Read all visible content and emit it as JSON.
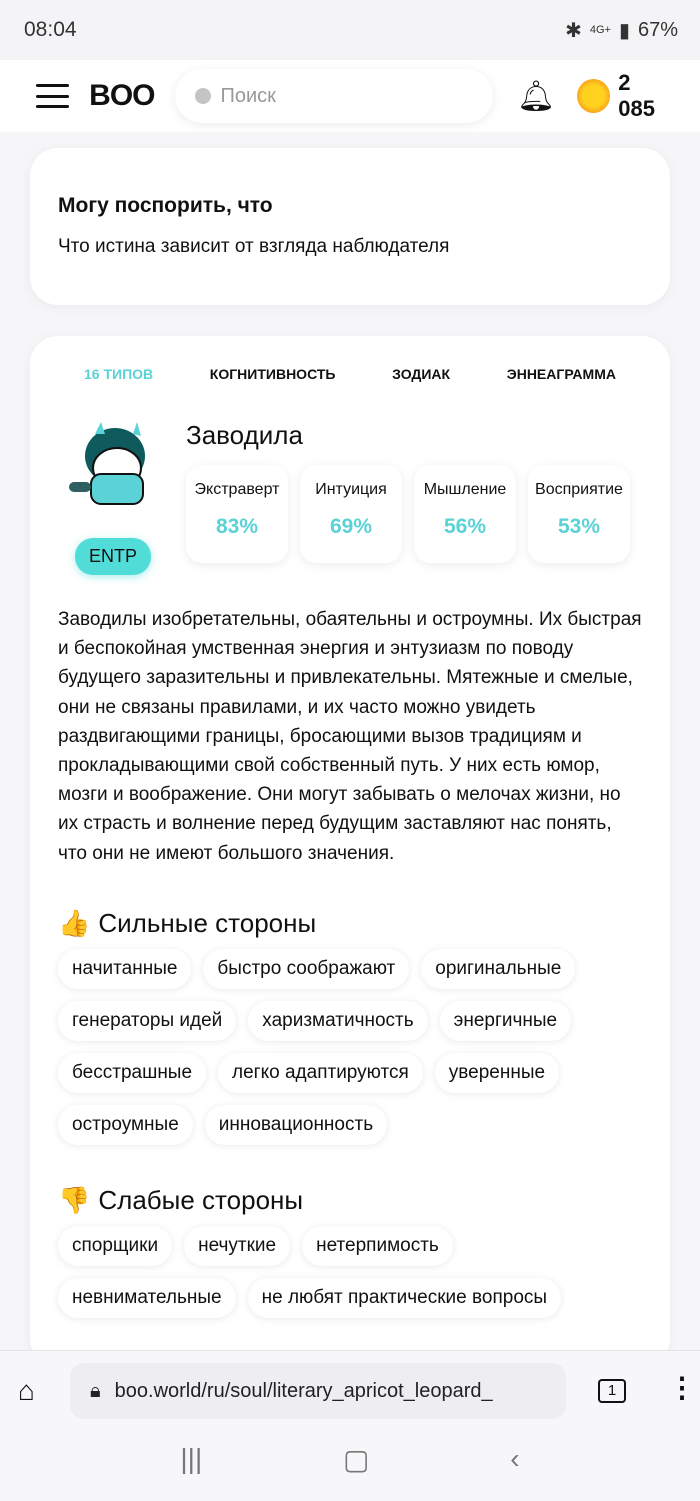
{
  "status": {
    "time": "08:04",
    "battery": "67%",
    "network": "4G+"
  },
  "header": {
    "logo": "BOO",
    "search_placeholder": "Поиск",
    "coins": "2 085"
  },
  "bet_card": {
    "title": "Могу поспорить, что",
    "text": "Что истина зависит от взгляда наблюдателя"
  },
  "tabs": [
    "16 ТИПОВ",
    "КОГНИТИВНОСТЬ",
    "ЗОДИАК",
    "ЭННЕАГРАММА"
  ],
  "profile": {
    "type_name": "Заводила",
    "type_code": "ENTP",
    "stats": [
      {
        "label": "Экстраверт",
        "value": "83%"
      },
      {
        "label": "Интуиция",
        "value": "69%"
      },
      {
        "label": "Мышление",
        "value": "56%"
      },
      {
        "label": "Восприятие",
        "value": "53%"
      }
    ],
    "description": "Заводилы изобретательны, обаятельны и остроумны. Их быстрая и беспокойная умственная энергия и энтузиазм по поводу будущего заразительны и привлекательны. Мятежные и смелые, они не связаны правилами, и их часто можно увидеть раздвигающими границы, бросающими вызов традициям и прокладывающими свой собственный путь. У них есть юмор, мозги и воображение. Они могут забывать о мелочах жизни, но их страсть и волнение перед будущим заставляют нас понять, что они не имеют большого значения."
  },
  "strengths": {
    "title": "Сильные стороны",
    "icon": "👍",
    "items": [
      "начитанные",
      "быстро соображают",
      "оригинальные",
      "генераторы идей",
      "харизматичность",
      "энергичные",
      "бесстрашные",
      "легко адаптируются",
      "уверенные",
      "остроумные",
      "инновационность"
    ]
  },
  "weaknesses": {
    "title": "Слабые стороны",
    "icon": "👎",
    "items": [
      "спорщики",
      "нечуткие",
      "нетерпимость",
      "невнимательные",
      "не любят практические вопросы"
    ]
  },
  "browser": {
    "url": "boo.world/ru/soul/literary_apricot_leopard_",
    "tab_count": "1"
  },
  "colors": {
    "accent": "#5ad2d6",
    "badge": "#51dcd8"
  }
}
